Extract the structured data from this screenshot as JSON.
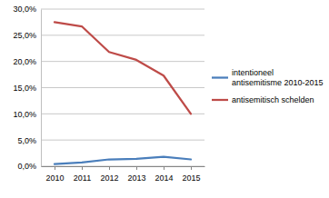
{
  "chart_data": {
    "type": "line",
    "categories": [
      "2010",
      "2011",
      "2012",
      "2013",
      "2014",
      "2015"
    ],
    "series": [
      {
        "name": "intentioneel antisemitisme 2010-2015",
        "color": "#4a7ebb",
        "values": [
          0.4,
          0.7,
          1.3,
          1.4,
          1.8,
          1.3
        ]
      },
      {
        "name": "antisemitisch schelden",
        "color": "#be4b48",
        "values": [
          27.5,
          26.7,
          21.8,
          20.3,
          17.3,
          10.0
        ]
      }
    ],
    "ylim": [
      0,
      30
    ],
    "yticks": [
      {
        "value": 0,
        "label": "0,0%"
      },
      {
        "value": 5,
        "label": "5,0%"
      },
      {
        "value": 10,
        "label": "10,0%"
      },
      {
        "value": 15,
        "label": "15,0%"
      },
      {
        "value": 20,
        "label": "20,0%"
      },
      {
        "value": 25,
        "label": "25,0%"
      },
      {
        "value": 30,
        "label": "30,0%"
      }
    ],
    "grid": true,
    "legend": "right"
  }
}
